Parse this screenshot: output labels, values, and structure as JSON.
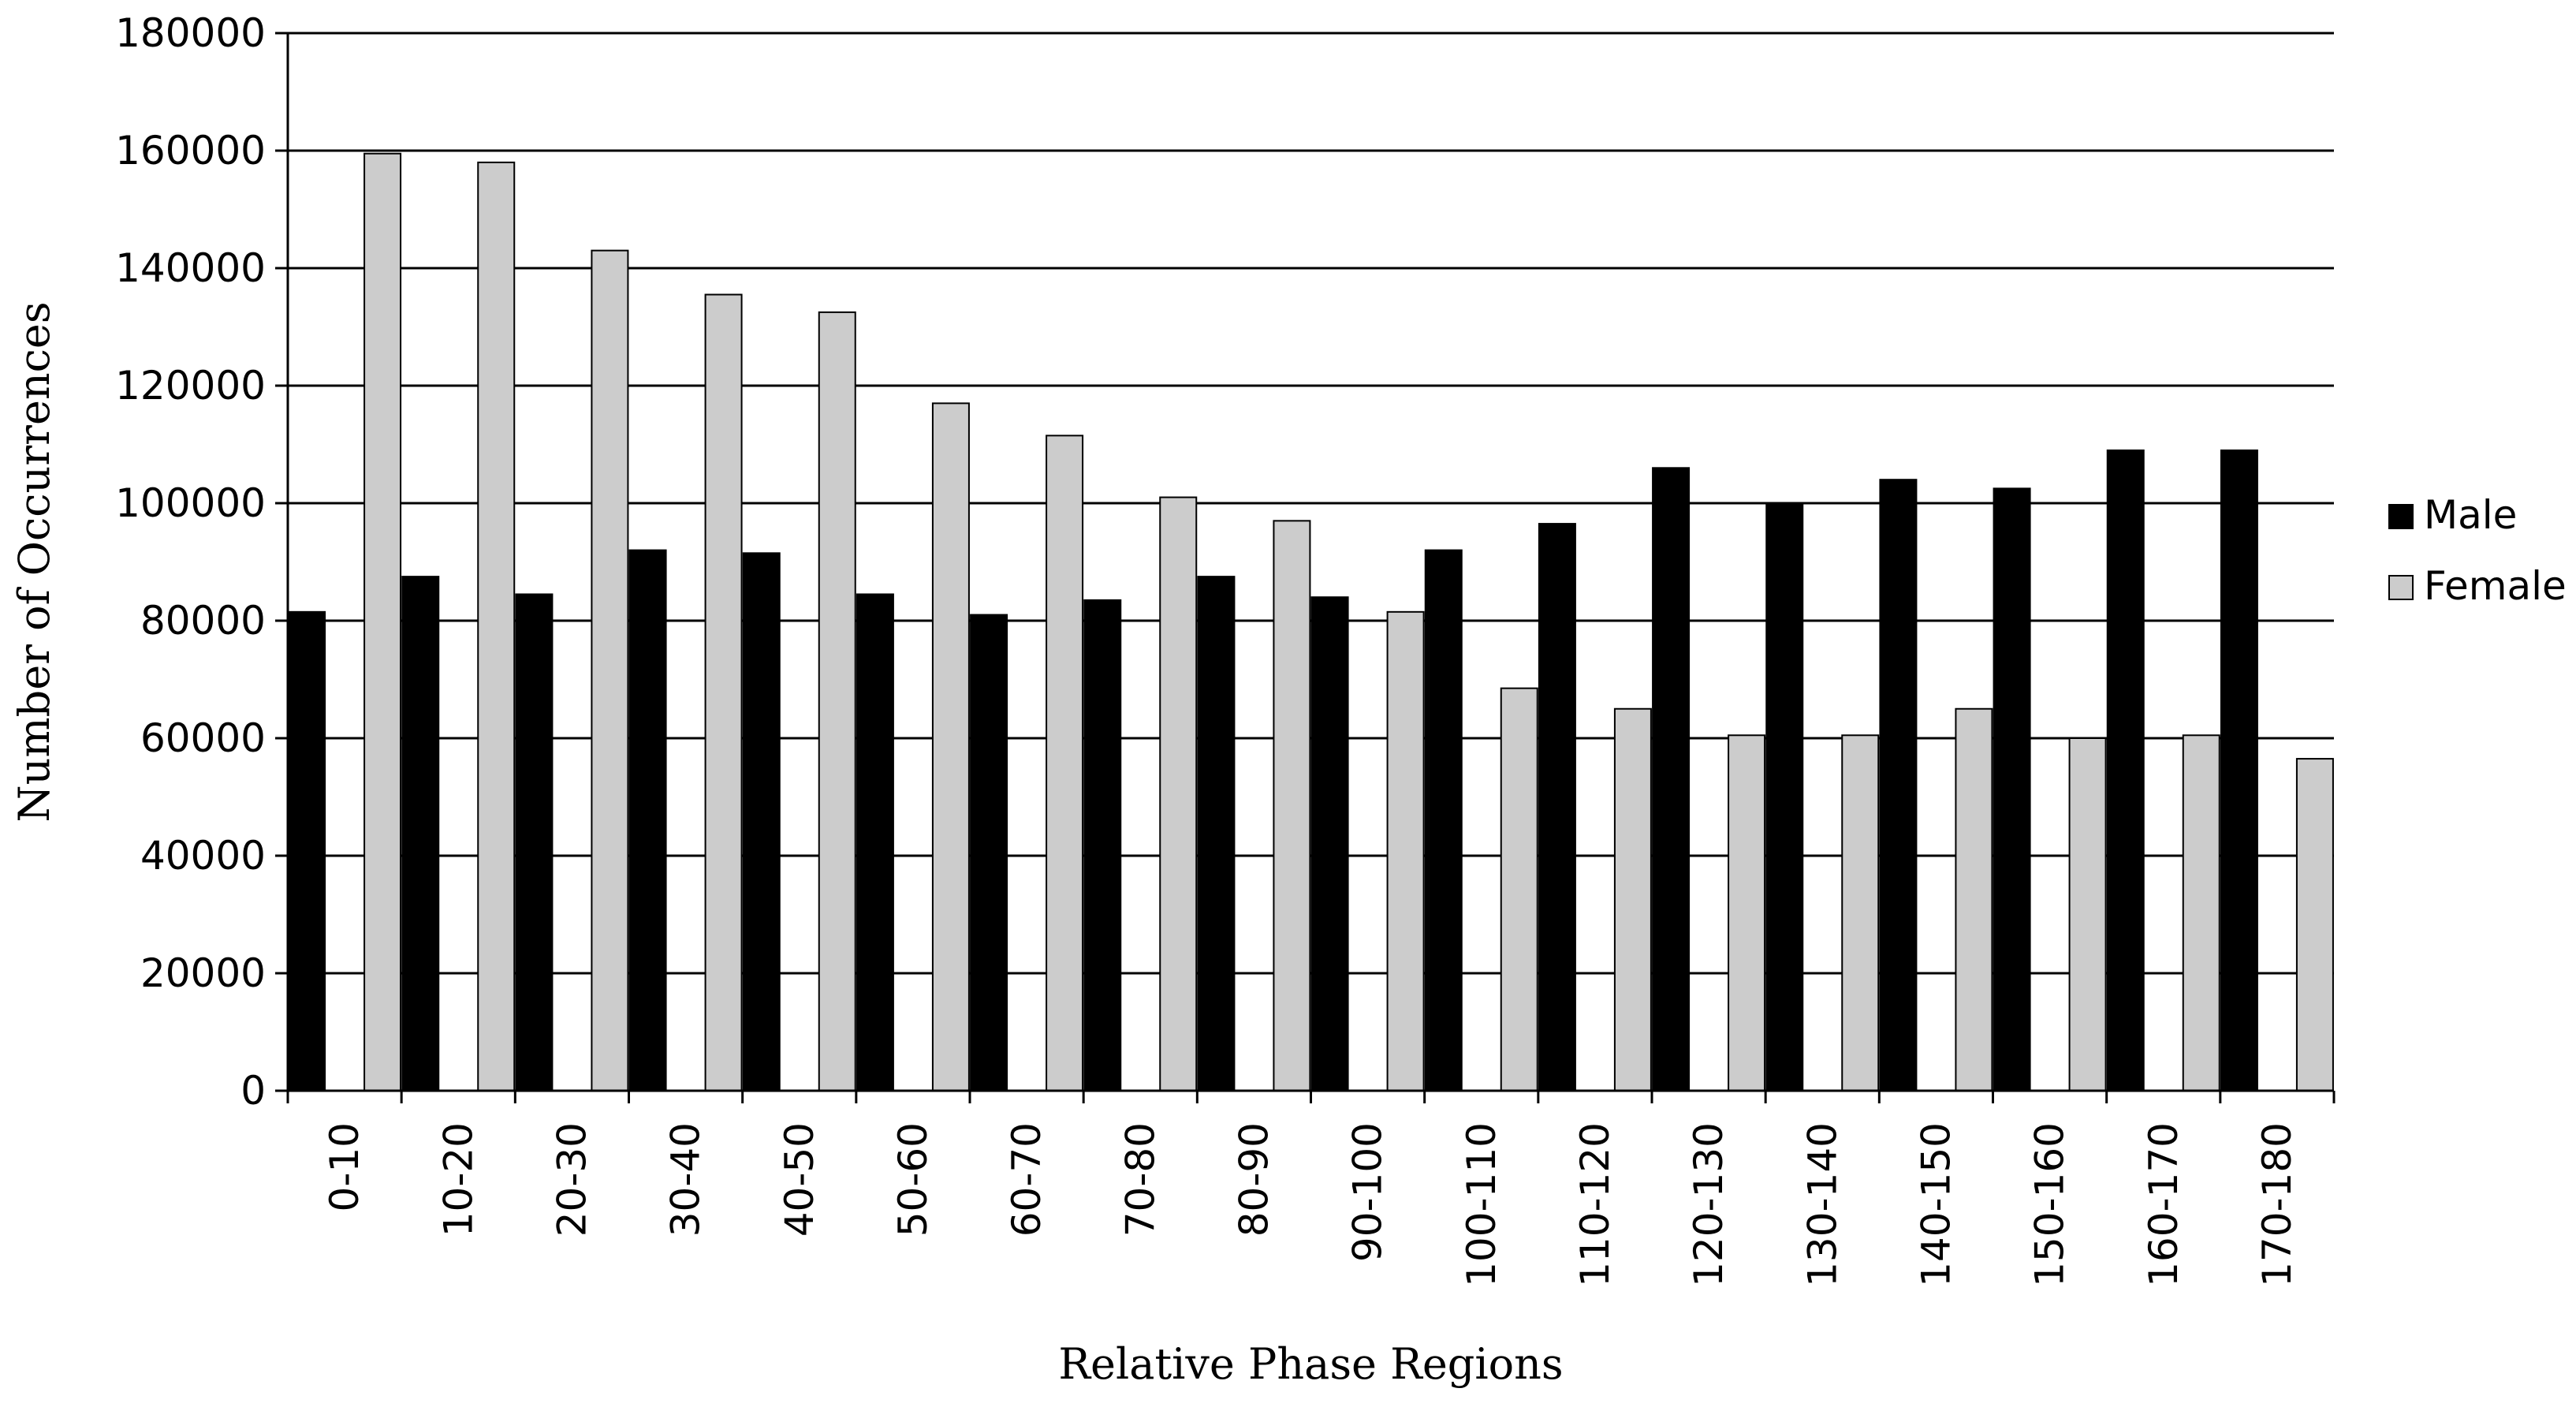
{
  "chart_data": {
    "type": "bar",
    "xlabel": "Relative Phase Regions",
    "ylabel": "Number of Occurrences",
    "ylim": [
      0,
      180000
    ],
    "yticks": [
      0,
      20000,
      40000,
      60000,
      80000,
      100000,
      120000,
      140000,
      160000,
      180000
    ],
    "grid": true,
    "legend_position": "right",
    "categories": [
      "0-10",
      "10-20",
      "20-30",
      "30-40",
      "40-50",
      "50-60",
      "60-70",
      "70-80",
      "80-90",
      "90-100",
      "100-110",
      "110-120",
      "120-130",
      "130-140",
      "140-150",
      "150-160",
      "160-170",
      "170-180"
    ],
    "series": [
      {
        "name": "Male",
        "color": "#000000",
        "values": [
          81500,
          87500,
          84500,
          92000,
          91500,
          84500,
          81000,
          83500,
          87500,
          84000,
          92000,
          96500,
          106000,
          100000,
          104000,
          102500,
          109000,
          109000
        ]
      },
      {
        "name": "Female",
        "color": "#cccccc",
        "values": [
          159500,
          158000,
          143000,
          135500,
          132500,
          117000,
          111500,
          101000,
          97000,
          81500,
          68500,
          65000,
          60500,
          60500,
          65000,
          60000,
          60500,
          56500
        ]
      }
    ]
  }
}
